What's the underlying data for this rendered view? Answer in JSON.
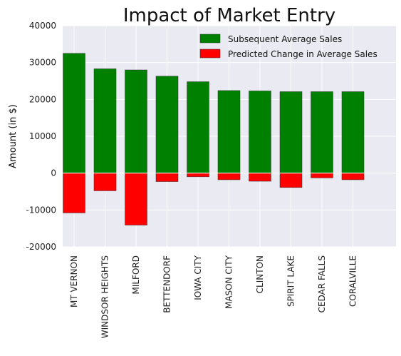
{
  "chart_data": {
    "type": "bar",
    "title": "Impact of Market Entry",
    "xlabel": "",
    "ylabel": "Amount (in $)",
    "ylim": [
      -20000,
      40000
    ],
    "yticks": [
      -20000,
      -10000,
      0,
      10000,
      20000,
      30000,
      40000
    ],
    "grid": true,
    "legend_position": "top-right",
    "categories": [
      "MT VERNON",
      "WINDSOR HEIGHTS",
      "MILFORD",
      "BETTENDORF",
      "IOWA CITY",
      "MASON CITY",
      "CLINTON",
      "SPIRIT LAKE",
      "CEDAR FALLS",
      "CORALVILLE"
    ],
    "series": [
      {
        "name": "Subsequent Average Sales",
        "color": "#008000",
        "values": [
          32500,
          28300,
          28000,
          26300,
          24800,
          22400,
          22300,
          22100,
          22100,
          22100
        ]
      },
      {
        "name": "Predicted Change in Average Sales",
        "color": "#ff0000",
        "values": [
          -10800,
          -4800,
          -14100,
          -2300,
          -1000,
          -1800,
          -2200,
          -3900,
          -1300,
          -1800
        ]
      }
    ],
    "colors": {
      "plot_background": "#eaeaf2",
      "grid": "#ffffff"
    }
  }
}
